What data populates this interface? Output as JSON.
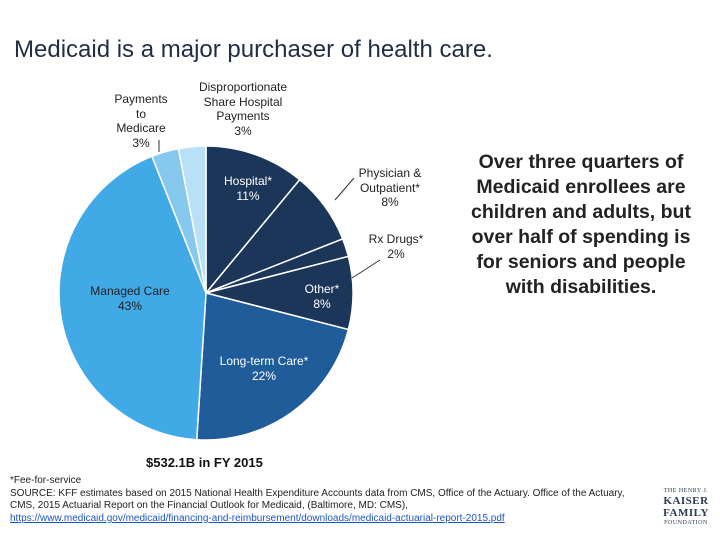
{
  "title": "Medicaid is a major purchaser of health care.",
  "chart_data": {
    "type": "pie",
    "start_angle_deg": 0,
    "direction": "clockwise",
    "slices": [
      {
        "label": "Hospital*",
        "value": 11,
        "value_label": "11%",
        "color": "#1c3659"
      },
      {
        "label": "Physician & Outpatient*",
        "value": 8,
        "value_label": "8%",
        "color": "#1c3659"
      },
      {
        "label": "Rx Drugs*",
        "value": 2,
        "value_label": "2%",
        "color": "#1c3659"
      },
      {
        "label": "Other*",
        "value": 8,
        "value_label": "8%",
        "color": "#1c3659"
      },
      {
        "label": "Long-term Care*",
        "value": 22,
        "value_label": "22%",
        "color": "#1f5c99"
      },
      {
        "label": "Managed Care",
        "value": 43,
        "value_label": "43%",
        "color": "#41a9e6"
      },
      {
        "label": "Payments to Medicare",
        "value": 3,
        "value_label": "3%",
        "color": "#87c8ee"
      },
      {
        "label": "Disproportionate Share Hospital Payments",
        "value": 3,
        "value_label": "3%",
        "color": "#b8e0f6"
      }
    ],
    "total_label": "$532.1B in FY 2015"
  },
  "callout": "Over three quarters of Medicaid enrollees are children and adults, but over half of spending is for seniors and people with disabilities.",
  "footnotes": {
    "fee_note": "*Fee-for-service",
    "source": "SOURCE: KFF  estimates based on 2015 National Health Expenditure Accounts data from CMS, Office of the Actuary. Office of the Actuary, CMS, 2015 Actuarial Report on the Financial Outlook for Medicaid, (Baltimore, MD: CMS),",
    "link": "https://www.medicaid.gov/medicaid/financing-and-reimbursement/downloads/medicaid-actuarial-report-2015.pdf"
  },
  "logo": {
    "line1": "THE HENRY J.",
    "line2": "KAISER",
    "line3": "FAMILY",
    "line4": "FOUNDATION"
  }
}
